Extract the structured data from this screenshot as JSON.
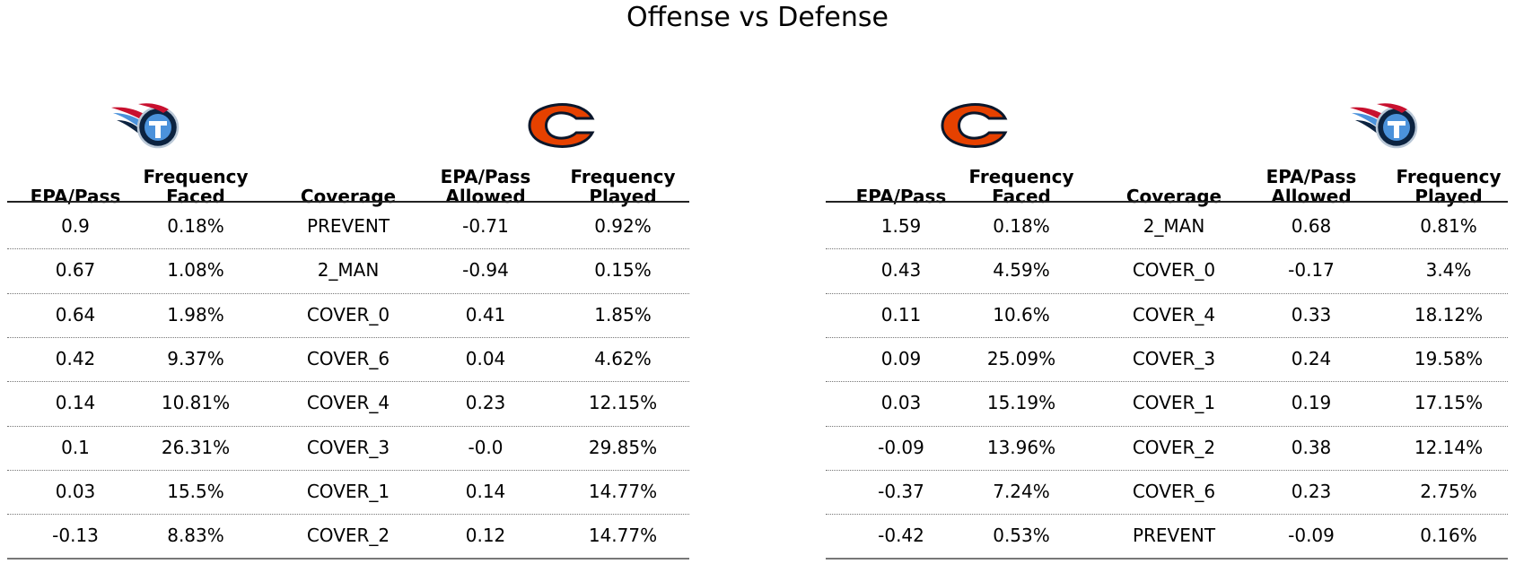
{
  "title": "Offense vs Defense",
  "logos": {
    "titans": {
      "icon": "titans-logo",
      "navy": "#0C2340",
      "blue": "#4B92DB",
      "red": "#C8102E"
    },
    "bears": {
      "icon": "bears-logo",
      "orange": "#E64100",
      "navy": "#0B162A"
    }
  },
  "columns": [
    "EPA/Pass",
    "Frequency\nFaced",
    "Coverage",
    "EPA/Pass\nAllowed",
    "Frequency\nPlayed"
  ],
  "chart_data": [
    {
      "type": "table",
      "offense_logo": "titans",
      "defense_logo": "bears",
      "columns": [
        "EPA/Pass",
        "Frequency Faced",
        "Coverage",
        "EPA/Pass Allowed",
        "Frequency Played"
      ],
      "rows": [
        [
          "0.9",
          "0.18%",
          "PREVENT",
          "-0.71",
          "0.92%"
        ],
        [
          "0.67",
          "1.08%",
          "2_MAN",
          "-0.94",
          "0.15%"
        ],
        [
          "0.64",
          "1.98%",
          "COVER_0",
          "0.41",
          "1.85%"
        ],
        [
          "0.42",
          "9.37%",
          "COVER_6",
          "0.04",
          "4.62%"
        ],
        [
          "0.14",
          "10.81%",
          "COVER_4",
          "0.23",
          "12.15%"
        ],
        [
          "0.1",
          "26.31%",
          "COVER_3",
          "-0.0",
          "29.85%"
        ],
        [
          "0.03",
          "15.5%",
          "COVER_1",
          "0.14",
          "14.77%"
        ],
        [
          "-0.13",
          "8.83%",
          "COVER_2",
          "0.12",
          "14.77%"
        ]
      ]
    },
    {
      "type": "table",
      "offense_logo": "bears",
      "defense_logo": "titans",
      "columns": [
        "EPA/Pass",
        "Frequency Faced",
        "Coverage",
        "EPA/Pass Allowed",
        "Frequency Played"
      ],
      "rows": [
        [
          "1.59",
          "0.18%",
          "2_MAN",
          "0.68",
          "0.81%"
        ],
        [
          "0.43",
          "4.59%",
          "COVER_0",
          "-0.17",
          "3.4%"
        ],
        [
          "0.11",
          "10.6%",
          "COVER_4",
          "0.33",
          "18.12%"
        ],
        [
          "0.09",
          "25.09%",
          "COVER_3",
          "0.24",
          "19.58%"
        ],
        [
          "0.03",
          "15.19%",
          "COVER_1",
          "0.19",
          "17.15%"
        ],
        [
          "-0.09",
          "13.96%",
          "COVER_2",
          "0.38",
          "12.14%"
        ],
        [
          "-0.37",
          "7.24%",
          "COVER_6",
          "0.23",
          "2.75%"
        ],
        [
          "-0.42",
          "0.53%",
          "PREVENT",
          "-0.09",
          "0.16%"
        ]
      ]
    }
  ]
}
